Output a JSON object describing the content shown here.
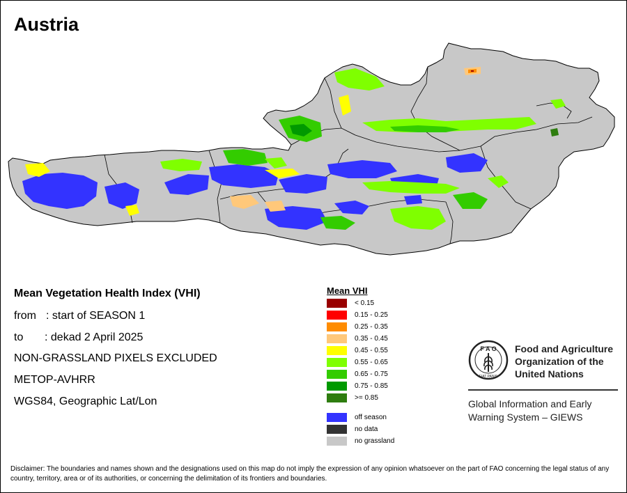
{
  "map": {
    "title": "Austria"
  },
  "info": {
    "heading": "Mean Vegetation Health Index (VHI)",
    "from_key": "from",
    "from_value": ": start of SEASON 1",
    "to_key": "to",
    "to_value": ": dekad 2 April 2025",
    "note": "NON-GRASSLAND PIXELS EXCLUDED",
    "sensor": "METOP-AVHRR",
    "projection": "WGS84, Geographic Lat/Lon"
  },
  "legend": {
    "title": "Mean VHI",
    "classes": [
      {
        "label": "< 0.15",
        "color": "#990000"
      },
      {
        "label": "0.15 - 0.25",
        "color": "#ff0000"
      },
      {
        "label": "0.25 - 0.35",
        "color": "#ff8c00"
      },
      {
        "label": "0.35 - 0.45",
        "color": "#ffc87a"
      },
      {
        "label": "0.45 - 0.55",
        "color": "#ffff00"
      },
      {
        "label": "0.55 - 0.65",
        "color": "#7fff00"
      },
      {
        "label": "0.65 - 0.75",
        "color": "#33cc00"
      },
      {
        "label": "0.75 - 0.85",
        "color": "#009900"
      },
      {
        "label": ">= 0.85",
        "color": "#2e7d0f"
      }
    ],
    "extras": [
      {
        "label": "off season",
        "color": "#3333ff"
      },
      {
        "label": "no data",
        "color": "#333333"
      },
      {
        "label": "no grassland",
        "color": "#c8c8c8"
      }
    ]
  },
  "colors": {
    "no_grassland": "#c8c8c8",
    "off_season": "#3333ff",
    "border": "#000000"
  },
  "fao": {
    "logo_icon": "fao-emblem-icon",
    "name_line1": "Food and Agriculture",
    "name_line2": "Organization of the",
    "name_line3": "United Nations",
    "giews_line1": "Global Information and Early",
    "giews_line2": "Warning System – GIEWS"
  },
  "disclaimer": {
    "text": "Disclaimer: The boundaries and names shown and the designations used on this map do not imply the expression of any opinion whatsoever on the part of FAO concerning the legal status of any country, territory, area or of its authorities, or concerning the delimitation of its frontiers and boundaries."
  }
}
